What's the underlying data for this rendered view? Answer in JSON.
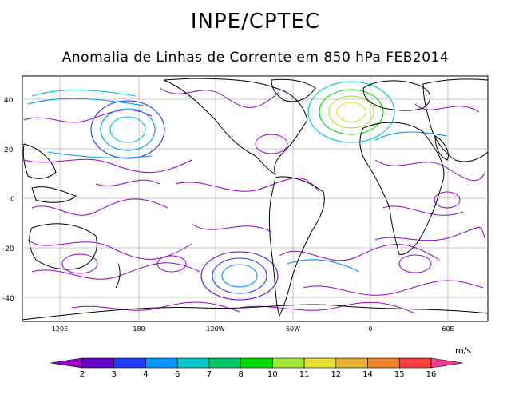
{
  "header": {
    "title": "INPE/CPTEC",
    "subtitle": "Anomalia de Linhas de Corrente em 850 hPa FEB2014"
  },
  "map": {
    "lat_ticks": [
      "40",
      "20",
      "0",
      "-20",
      "-40"
    ],
    "lon_ticks": [
      "120E",
      "180",
      "120W",
      "60W",
      "0",
      "60E"
    ]
  },
  "colorbar": {
    "units": "m/s",
    "labels": [
      "2",
      "3",
      "4",
      "6",
      "7",
      "8",
      "10",
      "11",
      "12",
      "14",
      "15",
      "16"
    ],
    "colors": [
      "#9900cc",
      "#6600cc",
      "#1f3cff",
      "#0096ff",
      "#00c8c8",
      "#00c864",
      "#00dc00",
      "#a0e632",
      "#e6dc32",
      "#e6af2d",
      "#f08228",
      "#fa3c3c",
      "#f03c96"
    ]
  }
}
